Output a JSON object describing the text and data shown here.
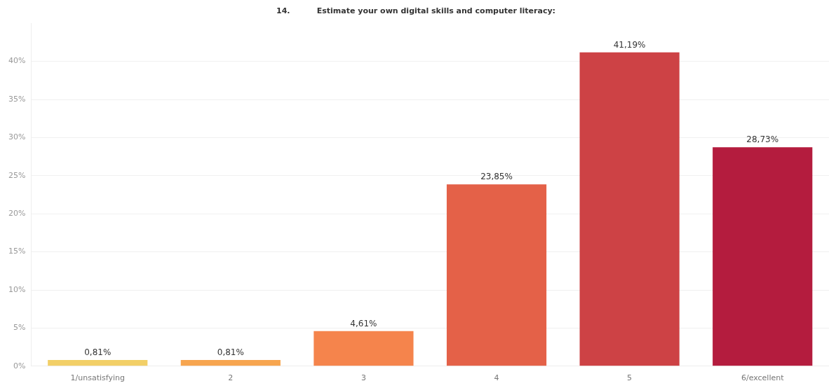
{
  "chart_data": {
    "type": "bar",
    "title": "14.          Estimate your own digital skills and computer literacy:",
    "categories": [
      "1/unsatisfying",
      "2",
      "3",
      "4",
      "5",
      "6/excellent"
    ],
    "values": [
      0.81,
      0.81,
      4.61,
      23.85,
      41.19,
      28.73
    ],
    "value_labels": [
      "0,81%",
      "0,81%",
      "4,61%",
      "23,85%",
      "41,19%",
      "28,73%"
    ],
    "colors": [
      "#f2cf67",
      "#f7a54f",
      "#f5844c",
      "#e46148",
      "#cd4245",
      "#b41c3e"
    ],
    "ylim": [
      0,
      45
    ],
    "yticks": [
      {
        "value": 0,
        "label": "0%"
      },
      {
        "value": 5,
        "label": "5%"
      },
      {
        "value": 10,
        "label": "10%"
      },
      {
        "value": 15,
        "label": "15%"
      },
      {
        "value": 20,
        "label": "20%"
      },
      {
        "value": 25,
        "label": "25%"
      },
      {
        "value": 30,
        "label": "30%"
      },
      {
        "value": 35,
        "label": "35%"
      },
      {
        "value": 40,
        "label": "40%"
      }
    ],
    "grid": "y",
    "legend": false
  }
}
